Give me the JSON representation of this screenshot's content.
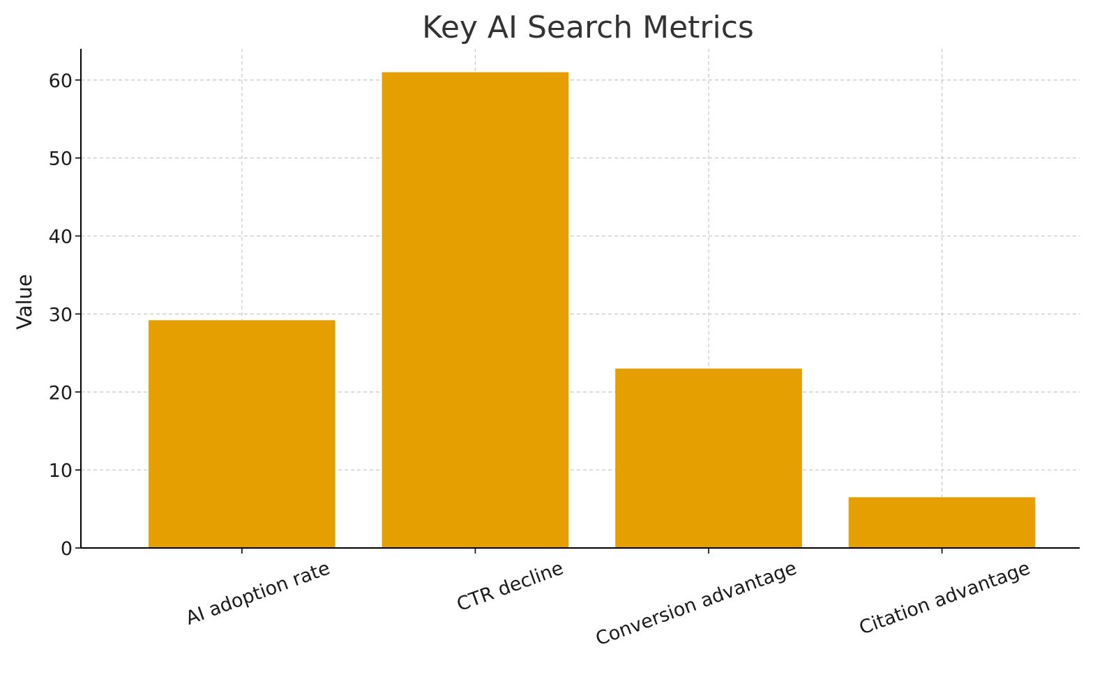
{
  "chart_data": {
    "type": "bar",
    "title": "Key AI Search Metrics",
    "xlabel": "",
    "ylabel": "Value",
    "categories": [
      "AI adoption rate",
      "CTR decline",
      "Conversion advantage",
      "Citation advantage"
    ],
    "values": [
      29.2,
      61,
      23,
      6.5
    ],
    "ylim": [
      0,
      64
    ],
    "yticks": [
      0,
      10,
      20,
      30,
      40,
      50,
      60
    ],
    "grid": true,
    "bar_color": "#E69F00",
    "x_tick_rotation_deg": 20
  }
}
